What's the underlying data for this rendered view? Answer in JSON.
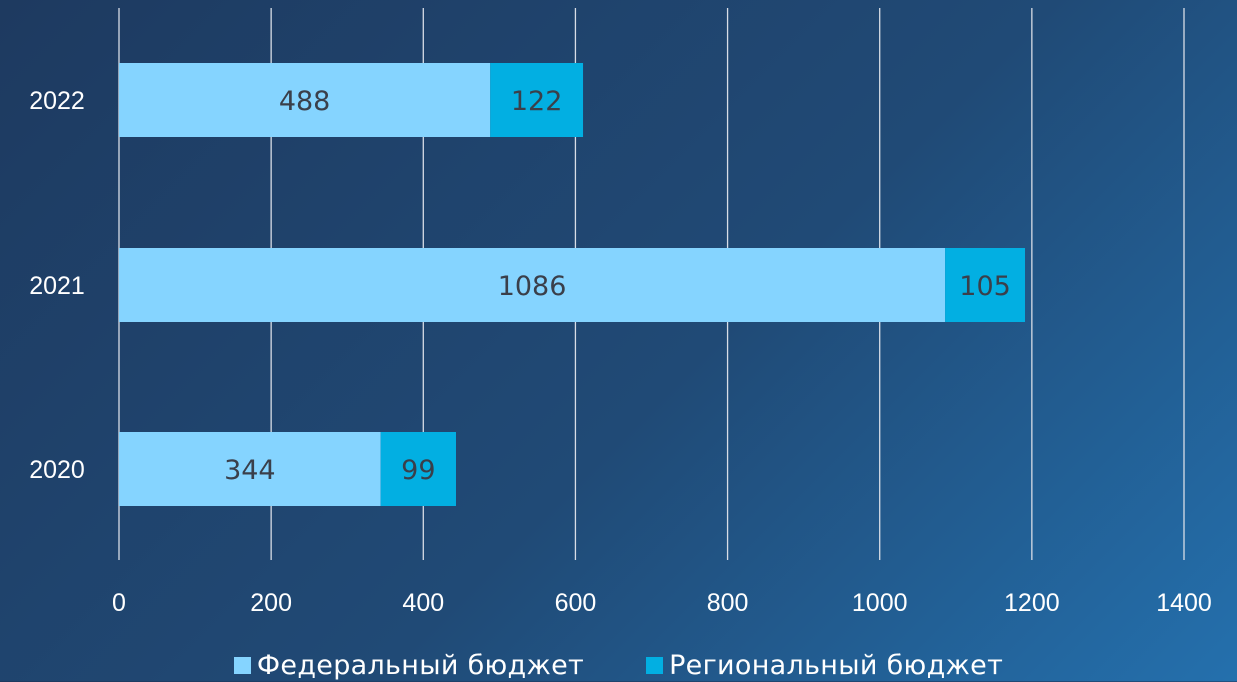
{
  "chart_data": {
    "type": "bar",
    "orientation": "horizontal",
    "stacked": true,
    "categories": [
      "2022",
      "2021",
      "2020"
    ],
    "series": [
      {
        "name": "Федеральный бюджет",
        "values": [
          488,
          1086,
          344
        ],
        "color": "#85d4ff"
      },
      {
        "name": "Региональный бюджет",
        "values": [
          122,
          105,
          99
        ],
        "color": "#02afe2"
      }
    ],
    "xlim": [
      0,
      1400
    ],
    "xticks": [
      "0",
      "200",
      "400",
      "600",
      "800",
      "1000",
      "1200",
      "1400"
    ],
    "title": "",
    "xlabel": "",
    "ylabel": "",
    "grid": "vertical",
    "legend": "bottom",
    "label_color": "#3a3f4a",
    "axis_text_color": "#ffffff",
    "grid_color": "#d8dde6"
  }
}
